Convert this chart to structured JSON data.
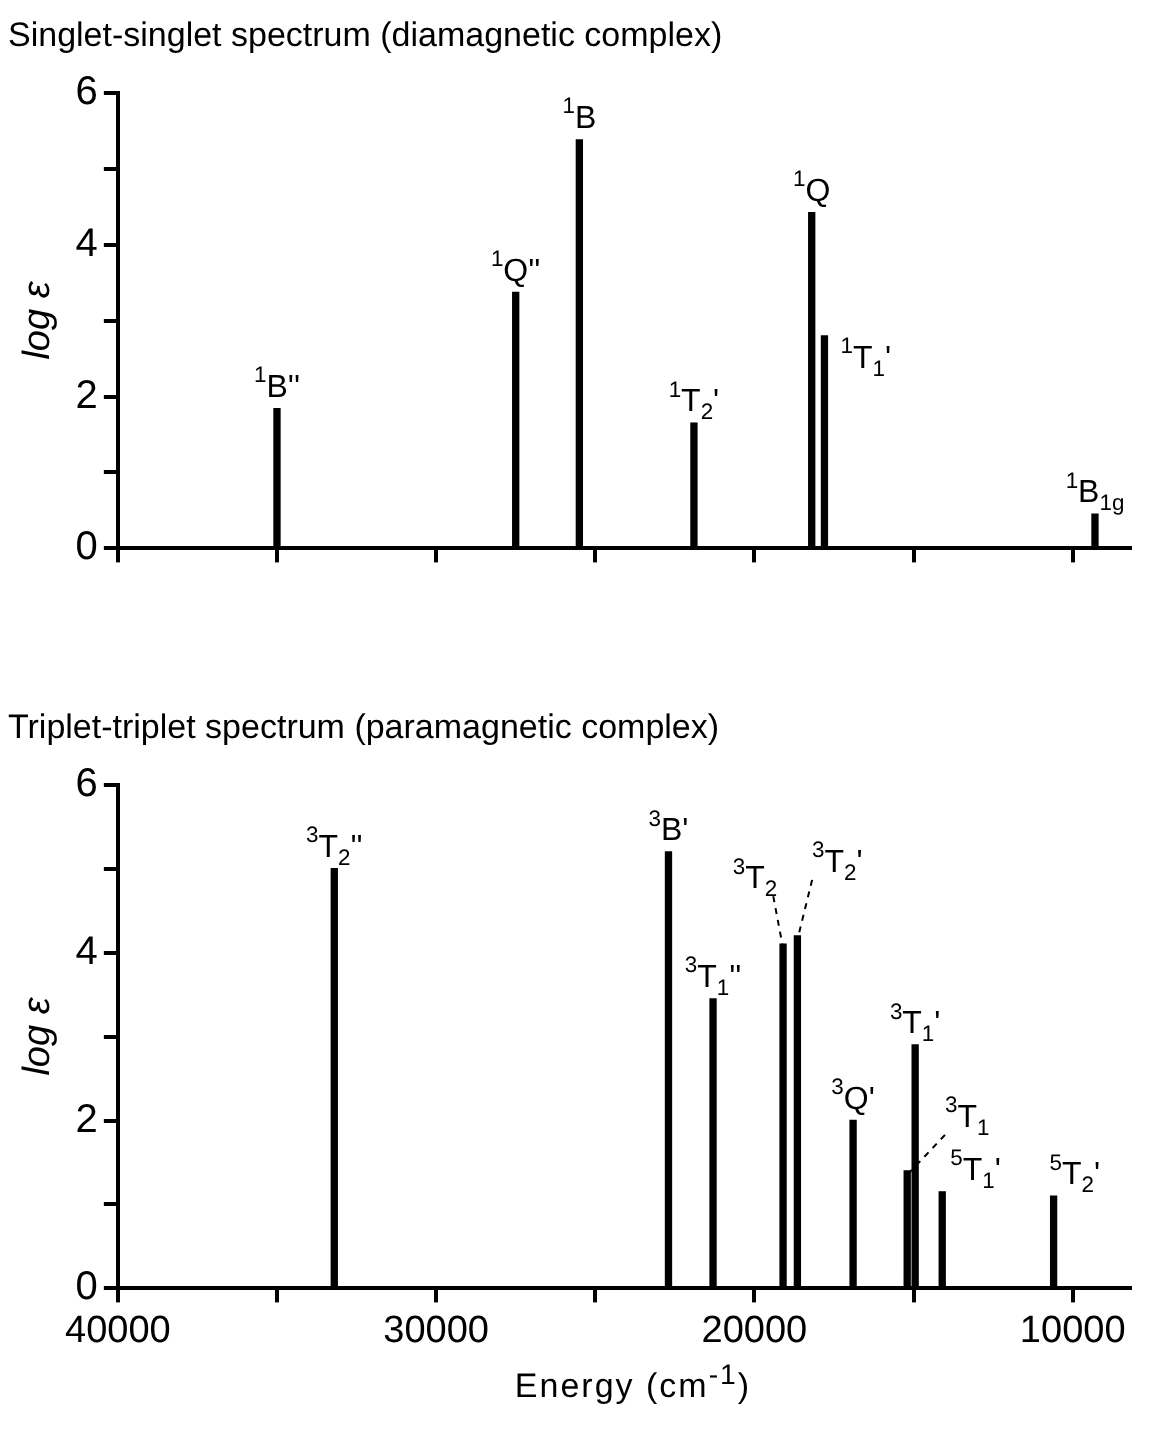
{
  "chart_data": [
    {
      "type": "bar",
      "title": "Singlet-singlet spectrum (diamagnetic complex)",
      "ylabel": "log ε",
      "series": [
        {
          "color": "#000000",
          "x": [
            35000,
            27500,
            25500,
            21900,
            18200,
            17800,
            9300
          ],
          "values": [
            1.84,
            3.37,
            5.38,
            1.65,
            4.42,
            2.8,
            0.45
          ]
        }
      ],
      "xlim": [
        40000,
        8200
      ],
      "xticks": [
        {
          "value": 40000,
          "label": null
        },
        {
          "value": 35000,
          "label": null
        },
        {
          "value": 30000,
          "label": null
        },
        {
          "value": 25000,
          "label": null
        },
        {
          "value": 20000,
          "label": null
        },
        {
          "value": 15000,
          "label": null
        },
        {
          "value": 10000,
          "label": null
        }
      ],
      "ylim": [
        0,
        6
      ],
      "yticks": [
        0,
        {
          "value": 1,
          "label": null
        },
        2,
        {
          "value": 3,
          "label": null
        },
        4,
        {
          "value": 5,
          "label": null
        },
        6
      ],
      "tick_labels": "y",
      "grid": false,
      "legend": false,
      "annotations": [
        {
          "text": "$^{1}$B''",
          "x": 35000,
          "y": 1.84
        },
        {
          "text": "$^{1}$Q''",
          "x": 27500,
          "y": 3.37
        },
        {
          "text": "$^{1}$B",
          "x": 25500,
          "y": 5.38
        },
        {
          "text": "$^{1}$T$_{2}$'",
          "x": 21900,
          "y": 1.65
        },
        {
          "text": "$^{1}$Q",
          "x": 18200,
          "y": 4.42
        },
        {
          "text": "$^{1}$T$_{1}$'",
          "x": 17800,
          "y": 2.8
        },
        {
          "text": "$^{1}$B$_{1g}$",
          "x": 9300,
          "y": 0.45
        }
      ]
    },
    {
      "type": "bar",
      "title": "Triplet-triplet spectrum (paramagnetic complex)",
      "ylabel": "log ε",
      "xlabel": "Energy (cm$^{-1}$)",
      "series": [
        {
          "color": "#000000",
          "x": [
            33200,
            22700,
            21300,
            19100,
            18650,
            16900,
            15200,
            14950,
            14100,
            10600
          ],
          "values": [
            5.0,
            5.2,
            3.45,
            4.1,
            4.2,
            2.0,
            1.4,
            2.9,
            1.15,
            1.1
          ]
        }
      ],
      "xlim": [
        40000,
        8200
      ],
      "xticks": [
        40000,
        {
          "value": 35000,
          "label": null
        },
        30000,
        {
          "value": 25000,
          "label": null
        },
        20000,
        {
          "value": 15000,
          "label": null
        },
        10000
      ],
      "ylim": [
        0,
        6
      ],
      "yticks": [
        0,
        {
          "value": 1,
          "label": null
        },
        2,
        {
          "value": 3,
          "label": null
        },
        4,
        {
          "value": 5,
          "label": null
        },
        6
      ],
      "grid": false,
      "legend": false,
      "annotations": [
        {
          "text": "$^{3}$T$_{2}$''",
          "x": 33200,
          "y": 5.0
        },
        {
          "text": "$^{3}$B'",
          "x": 22700,
          "y": 5.2
        },
        {
          "text": "$^{3}$T$_{1}$''",
          "x": 21300,
          "y": 3.45
        },
        {
          "text": "$^{3}$T$_{2}$",
          "x": 19100,
          "y": 4.1
        },
        {
          "text": "$^{3}$T$_{2}$'",
          "x": 18650,
          "y": 4.2
        },
        {
          "text": "$^{3}$Q'",
          "x": 16900,
          "y": 2.0
        },
        {
          "text": "$^{3}$T$_{1}$'",
          "x": 14950,
          "y": 2.9
        },
        {
          "text": "$^{3}$T$_{1}$",
          "x": 15200,
          "y": 1.4
        },
        {
          "text": "$^{5}$T$_{1}$'",
          "x": 14100,
          "y": 1.15
        },
        {
          "text": "$^{5}$T$_{2}$'",
          "x": 10600,
          "y": 1.1
        }
      ]
    }
  ]
}
